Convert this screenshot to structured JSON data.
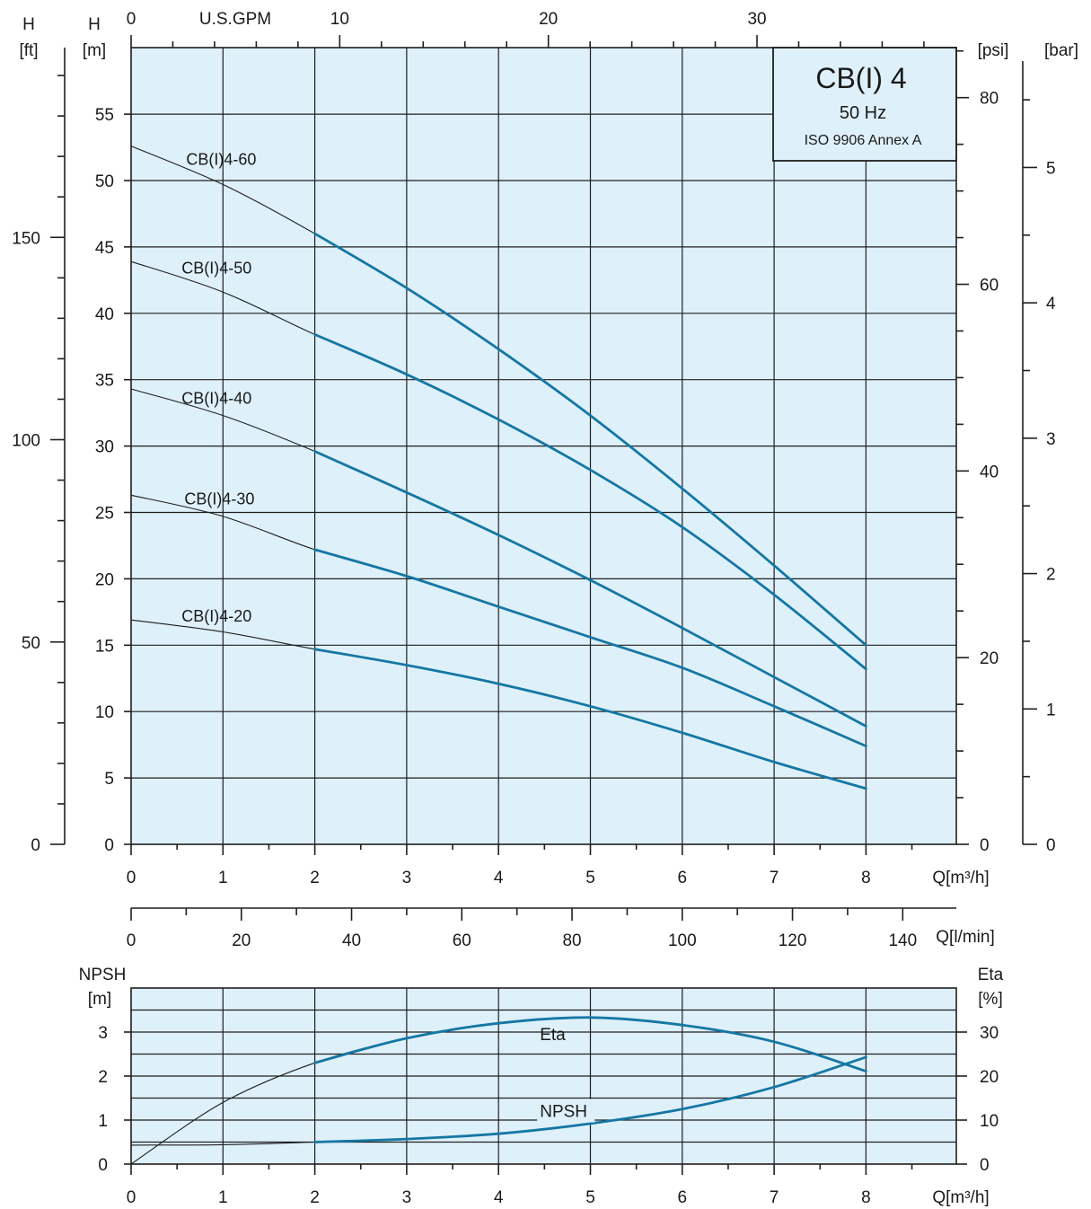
{
  "chart_data": [
    {
      "type": "line",
      "title": "CB(I) 4",
      "subtitle": "50 Hz",
      "note": "ISO 9906 Annex A",
      "xlabel": "Q[m³/h]",
      "ylabel_left_m": "H",
      "ylabel_left_m_unit": "[m]",
      "ylabel_left_ft": "H",
      "ylabel_left_ft_unit": "[ft]",
      "ylabel_right_psi": "[psi]",
      "ylabel_right_bar": "[bar]",
      "top_axis_label": "U.S.GPM",
      "second_x_axis_label": "Q[l/min]",
      "xlim": [
        0,
        9
      ],
      "ylim": [
        0,
        60
      ],
      "xticks": [
        0,
        1,
        2,
        3,
        4,
        5,
        6,
        7,
        8
      ],
      "yticks_m": [
        0,
        5,
        10,
        15,
        20,
        25,
        30,
        35,
        40,
        45,
        50,
        55
      ],
      "yticks_ft": [
        0,
        50,
        100,
        150
      ],
      "yticks_psi": [
        0,
        20,
        40,
        60,
        80
      ],
      "yticks_bar": [
        0,
        1,
        2,
        3,
        4,
        5
      ],
      "top_ticks_gpm": [
        0,
        10,
        20,
        30
      ],
      "lmin_ticks": [
        0,
        20,
        40,
        60,
        80,
        100,
        120,
        140
      ],
      "grid": true,
      "series": [
        {
          "name": "CB(I)4-60",
          "x": [
            0,
            1,
            2,
            3,
            4,
            5,
            6,
            7,
            8
          ],
          "y": [
            52.6,
            49.7,
            46.0,
            41.9,
            37.3,
            32.3,
            26.8,
            21.0,
            15.0
          ],
          "thin_until": 2,
          "label_at": [
            0.6,
            51.6
          ]
        },
        {
          "name": "CB(I)4-50",
          "x": [
            0,
            1,
            2,
            3,
            4,
            5,
            6,
            7,
            8
          ],
          "y": [
            43.9,
            41.6,
            38.4,
            35.4,
            32.0,
            28.2,
            23.9,
            18.8,
            13.2
          ],
          "thin_until": 2,
          "label_at": [
            0.55,
            43.4
          ]
        },
        {
          "name": "CB(I)4-40",
          "x": [
            0,
            1,
            2,
            3,
            4,
            5,
            6,
            7,
            8
          ],
          "y": [
            34.3,
            32.3,
            29.6,
            26.5,
            23.3,
            19.9,
            16.3,
            12.6,
            8.9
          ],
          "thin_until": 2,
          "label_at": [
            0.55,
            33.6
          ]
        },
        {
          "name": "CB(I)4-30",
          "x": [
            0,
            1,
            2,
            3,
            4,
            5,
            6,
            7,
            8
          ],
          "y": [
            26.3,
            24.7,
            22.2,
            20.2,
            17.9,
            15.6,
            13.3,
            10.4,
            7.4
          ],
          "thin_until": 2,
          "label_at": [
            0.58,
            26.0
          ]
        },
        {
          "name": "CB(I)4-20",
          "x": [
            0,
            1,
            2,
            3,
            4,
            5,
            6,
            7,
            8
          ],
          "y": [
            16.9,
            16.0,
            14.7,
            13.5,
            12.1,
            10.4,
            8.4,
            6.2,
            4.2
          ],
          "thin_until": 2,
          "label_at": [
            0.55,
            17.2
          ]
        }
      ]
    },
    {
      "type": "line",
      "xlabel": "Q[m³/h]",
      "ylabel_left": "NPSH",
      "ylabel_left_unit": "[m]",
      "ylabel_right": "Eta",
      "ylabel_right_unit": "[%]",
      "xlim": [
        0,
        9
      ],
      "ylim_left": [
        0,
        4
      ],
      "ylim_right": [
        0,
        40
      ],
      "xticks": [
        0,
        1,
        2,
        3,
        4,
        5,
        6,
        7,
        8
      ],
      "yticks_left": [
        0,
        1,
        2,
        3
      ],
      "yticks_right": [
        0,
        10,
        20,
        30
      ],
      "grid": true,
      "series": [
        {
          "name": "Eta",
          "axis": "right",
          "x": [
            0,
            1,
            2,
            3,
            4,
            5,
            6,
            7,
            8
          ],
          "y": [
            0,
            14.0,
            23.0,
            28.6,
            32.0,
            33.3,
            31.6,
            27.8,
            21.1
          ],
          "thin_until": 2,
          "label_at": [
            4.45,
            28.2
          ]
        },
        {
          "name": "NPSH",
          "axis": "left",
          "x": [
            0,
            1,
            2,
            3,
            4,
            5,
            6,
            7,
            8
          ],
          "y": [
            0.43,
            0.44,
            0.5,
            0.57,
            0.69,
            0.92,
            1.25,
            1.75,
            2.43
          ],
          "thin_until": 2,
          "label_at": [
            4.45,
            1.07
          ]
        }
      ]
    }
  ],
  "palette": {
    "plot_background": "#def0fa",
    "curve": "#1577a3",
    "grid": "#1f1f1f"
  }
}
